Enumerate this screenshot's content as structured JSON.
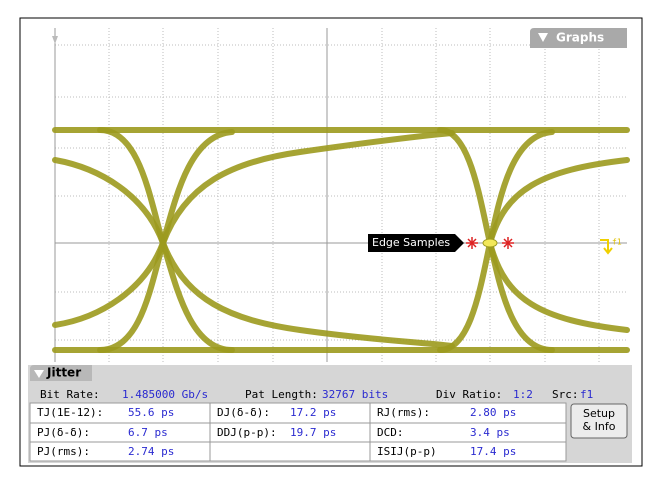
{
  "graphs_tab": "Graphs",
  "marker": {
    "label": "Edge Samples",
    "channel": "f1"
  },
  "jitter_panel": {
    "title": "Jitter",
    "info": [
      {
        "label": "Bit Rate:",
        "value": "1.485000 Gb/s"
      },
      {
        "label": "Pat Length:",
        "value": "32767 bits"
      },
      {
        "label": "Div Ratio:",
        "value": "1:2"
      },
      {
        "label": "Src:",
        "value": "f1"
      }
    ],
    "columns": [
      [
        {
          "label": "TJ(1E-12):",
          "value": "55.6 ps"
        },
        {
          "label": "PJ(δ-δ):",
          "value": "6.7 ps"
        },
        {
          "label": "PJ(rms):",
          "value": "2.74 ps"
        }
      ],
      [
        {
          "label": "DJ(δ-δ):",
          "value": "17.2 ps"
        },
        {
          "label": "DDJ(p-p):",
          "value": "19.7 ps"
        }
      ],
      [
        {
          "label": "RJ(rms):",
          "value": "2.80 ps"
        },
        {
          "label": "DCD:",
          "value": "3.4 ps"
        },
        {
          "label": "ISIJ(p-p)",
          "value": "17.4 ps"
        }
      ]
    ],
    "button": [
      "Setup",
      "& Info"
    ]
  }
}
